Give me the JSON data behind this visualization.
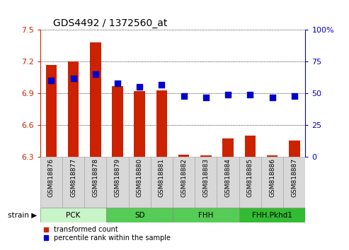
{
  "title": "GDS4492 / 1372560_at",
  "samples": [
    "GSM818876",
    "GSM818877",
    "GSM818878",
    "GSM818879",
    "GSM818880",
    "GSM818881",
    "GSM818882",
    "GSM818883",
    "GSM818884",
    "GSM818885",
    "GSM818886",
    "GSM818887"
  ],
  "red_values": [
    7.17,
    7.2,
    7.38,
    6.97,
    6.92,
    6.93,
    6.32,
    6.31,
    6.47,
    6.5,
    6.31,
    6.45
  ],
  "blue_values": [
    60,
    62,
    65,
    58,
    55,
    57,
    48,
    47,
    49,
    49,
    47,
    48
  ],
  "ylim_left": [
    6.3,
    7.5
  ],
  "ylim_right": [
    0,
    100
  ],
  "yticks_left": [
    6.3,
    6.6,
    6.9,
    7.2,
    7.5
  ],
  "yticks_right": [
    0,
    25,
    50,
    75,
    100
  ],
  "groups": [
    {
      "label": "PCK",
      "start": 0,
      "end": 3,
      "color": "#c8f5c8"
    },
    {
      "label": "SD",
      "start": 3,
      "end": 6,
      "color": "#55cc55"
    },
    {
      "label": "FHH",
      "start": 6,
      "end": 9,
      "color": "#55cc55"
    },
    {
      "label": "FHH.Pkhd1",
      "start": 9,
      "end": 12,
      "color": "#33bb33"
    }
  ],
  "bar_color": "#cc2200",
  "dot_color": "#0000cc",
  "bar_width": 0.5,
  "dot_size": 30,
  "legend_red": "transformed count",
  "legend_blue": "percentile rank within the sample",
  "strain_label": "strain"
}
